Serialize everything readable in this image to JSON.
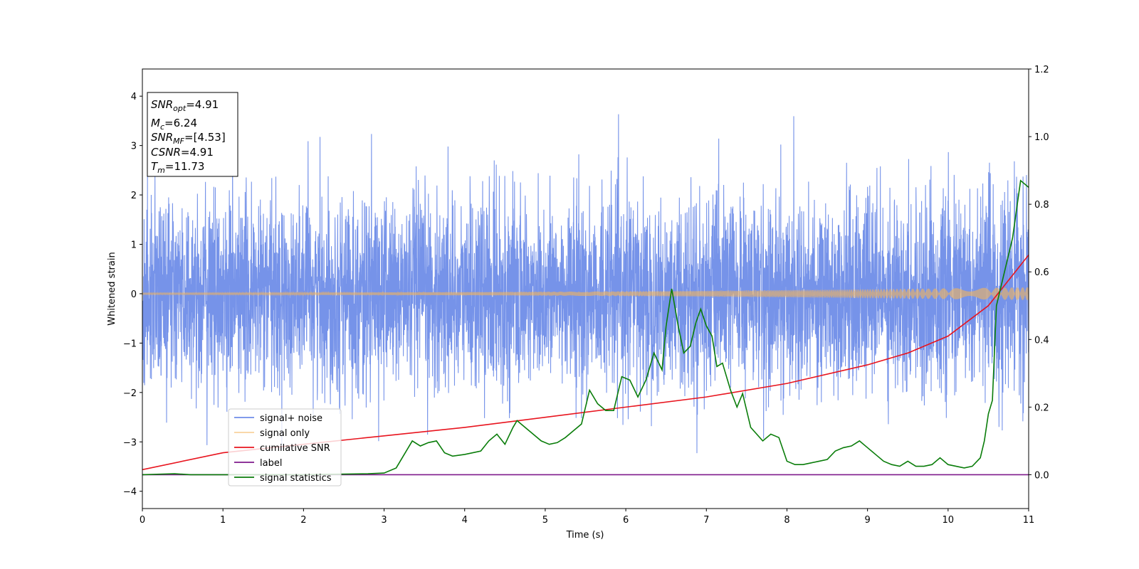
{
  "chart_data": {
    "type": "line",
    "title": "",
    "xlabel": "Time (s)",
    "ylabel": "Whitened strain",
    "y2label": "",
    "xlim": [
      0,
      11
    ],
    "ylim": [
      -4.35,
      4.55
    ],
    "y2lim": [
      -0.1,
      1.2
    ],
    "xticks": [
      0,
      1,
      2,
      3,
      4,
      5,
      6,
      7,
      8,
      9,
      10,
      11
    ],
    "yticks": [
      -4,
      -3,
      -2,
      -1,
      0,
      1,
      2,
      3,
      4
    ],
    "y2ticks": [
      "0.0",
      "0.2",
      "0.4",
      "0.6",
      "0.8",
      "1.0",
      "1.2"
    ],
    "grid": false,
    "legend_position": "lower-left",
    "info_box": {
      "position": "top-left",
      "lines": [
        {
          "sym": "SNR",
          "sub": "opt",
          "val": "=4.91"
        },
        {
          "sym": "M",
          "sub": "c",
          "val": "=6.24"
        },
        {
          "sym": "SNR",
          "sub": "MF",
          "val": "=[4.53]"
        },
        {
          "sym": "CSNR",
          "sub": "",
          "val": "=4.91"
        },
        {
          "sym": "T",
          "sub": "m",
          "val": "=11.73"
        }
      ]
    },
    "series": [
      {
        "name": "signal+ noise",
        "axis": "left",
        "color": "#6f8de8",
        "kind": "noise",
        "sigma": 0.95,
        "range": [
          -3.95,
          4.15
        ]
      },
      {
        "name": "signal only",
        "axis": "left",
        "color": "#f4b45c",
        "kind": "chirp",
        "amplitude_start": 0.02,
        "amplitude_end": 0.13
      },
      {
        "name": "cumilative SNR",
        "axis": "right",
        "color": "#e8141e",
        "kind": "curve",
        "x": [
          0,
          1,
          2,
          3,
          4,
          5,
          6,
          7,
          8,
          9,
          9.5,
          10,
          10.5,
          11
        ],
        "y": [
          0.015,
          0.065,
          0.09,
          0.115,
          0.14,
          0.17,
          0.2,
          0.23,
          0.27,
          0.325,
          0.36,
          0.41,
          0.5,
          0.65
        ]
      },
      {
        "name": "label",
        "axis": "right",
        "color": "#7f1a8c",
        "kind": "curve",
        "x": [
          0,
          11
        ],
        "y": [
          0.0,
          0.0
        ]
      },
      {
        "name": "signal statistics",
        "axis": "right",
        "color": "#0a7d0a",
        "kind": "curve",
        "x": [
          0,
          0.4,
          0.6,
          1.0,
          2.0,
          2.8,
          3.0,
          3.15,
          3.25,
          3.35,
          3.45,
          3.55,
          3.65,
          3.75,
          3.85,
          4.0,
          4.1,
          4.2,
          4.3,
          4.4,
          4.5,
          4.6,
          4.65,
          4.75,
          4.85,
          4.95,
          5.05,
          5.15,
          5.25,
          5.35,
          5.45,
          5.55,
          5.65,
          5.75,
          5.85,
          5.95,
          6.05,
          6.15,
          6.25,
          6.35,
          6.45,
          6.5,
          6.57,
          6.65,
          6.72,
          6.8,
          6.87,
          6.93,
          7.0,
          7.07,
          7.13,
          7.2,
          7.3,
          7.38,
          7.45,
          7.55,
          7.7,
          7.8,
          7.9,
          8.0,
          8.1,
          8.2,
          8.3,
          8.4,
          8.5,
          8.6,
          8.7,
          8.8,
          8.9,
          9.0,
          9.1,
          9.2,
          9.3,
          9.4,
          9.5,
          9.6,
          9.7,
          9.8,
          9.9,
          10.0,
          10.1,
          10.2,
          10.3,
          10.4,
          10.45,
          10.5,
          10.55,
          10.6,
          10.7,
          10.8,
          10.9,
          11.0
        ],
        "y": [
          0.0,
          0.003,
          0.0,
          0.0,
          0.0,
          0.003,
          0.005,
          0.02,
          0.06,
          0.1,
          0.085,
          0.095,
          0.1,
          0.065,
          0.055,
          0.06,
          0.065,
          0.07,
          0.1,
          0.12,
          0.09,
          0.14,
          0.16,
          0.14,
          0.12,
          0.1,
          0.09,
          0.095,
          0.11,
          0.13,
          0.15,
          0.25,
          0.21,
          0.19,
          0.19,
          0.29,
          0.28,
          0.23,
          0.28,
          0.36,
          0.31,
          0.44,
          0.55,
          0.44,
          0.36,
          0.38,
          0.45,
          0.49,
          0.44,
          0.41,
          0.32,
          0.33,
          0.25,
          0.2,
          0.24,
          0.14,
          0.1,
          0.12,
          0.11,
          0.04,
          0.03,
          0.03,
          0.035,
          0.04,
          0.045,
          0.07,
          0.08,
          0.085,
          0.1,
          0.08,
          0.06,
          0.04,
          0.03,
          0.025,
          0.04,
          0.025,
          0.025,
          0.03,
          0.05,
          0.03,
          0.025,
          0.02,
          0.025,
          0.05,
          0.1,
          0.18,
          0.22,
          0.5,
          0.6,
          0.7,
          0.87,
          0.85
        ]
      }
    ]
  }
}
